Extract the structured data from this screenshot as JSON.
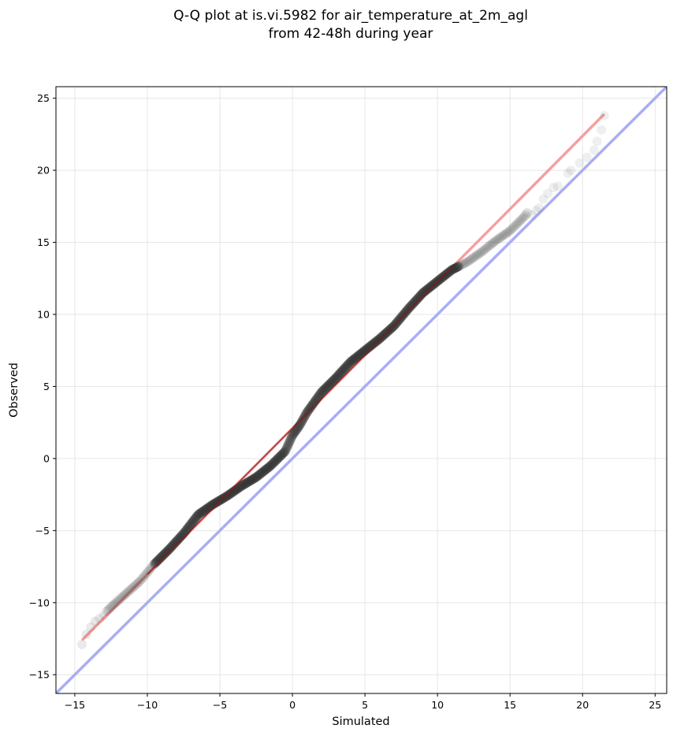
{
  "chart_data": {
    "type": "scatter",
    "title": "Q-Q plot at is.vi.5982 for air_temperature_at_2m_agl",
    "subtitle": "from 42-48h during year",
    "xlabel": "Simulated",
    "ylabel": "Observed",
    "xlim": [
      -16.3,
      25.8
    ],
    "ylim": [
      -16.3,
      25.8
    ],
    "xticks": [
      -15,
      -10,
      -5,
      0,
      5,
      10,
      15,
      20,
      25
    ],
    "yticks": [
      -15,
      -10,
      -5,
      0,
      5,
      10,
      15,
      20,
      25
    ],
    "xtick_labels": [
      "−15",
      "−10",
      "−5",
      "0",
      "5",
      "10",
      "15",
      "20",
      "25"
    ],
    "ytick_labels": [
      "−15",
      "−10",
      "−5",
      "0",
      "5",
      "10",
      "15",
      "20",
      "25"
    ],
    "grid": true,
    "colors": {
      "points": "#333333",
      "fit_line": "#f5a0a0",
      "fit_line_dense": "#8b1a1a",
      "identity_line": "#a8aef5",
      "grid": "#e6e6e6"
    },
    "fit_line": {
      "from": [
        -14.5,
        -12.6
      ],
      "to": [
        21.5,
        23.9
      ]
    },
    "identity_line": {
      "from": [
        -16.3,
        -16.3
      ],
      "to": [
        25.8,
        25.8
      ]
    },
    "quantile_knots": [
      [
        -14.5,
        -12.9
      ],
      [
        -14.2,
        -12.2
      ],
      [
        -13.5,
        -11.3
      ],
      [
        -12.5,
        -10.3
      ],
      [
        -11.5,
        -9.4
      ],
      [
        -10.5,
        -8.5
      ],
      [
        -9.5,
        -7.3
      ],
      [
        -8.5,
        -6.3
      ],
      [
        -7.5,
        -5.2
      ],
      [
        -6.5,
        -3.9
      ],
      [
        -5.5,
        -3.2
      ],
      [
        -4.5,
        -2.6
      ],
      [
        -3.5,
        -1.9
      ],
      [
        -2.5,
        -1.3
      ],
      [
        -1.5,
        -0.5
      ],
      [
        -0.5,
        0.5
      ],
      [
        0.0,
        1.6
      ],
      [
        0.5,
        2.3
      ],
      [
        1.0,
        3.2
      ],
      [
        2.0,
        4.6
      ],
      [
        3.0,
        5.6
      ],
      [
        4.0,
        6.7
      ],
      [
        5.0,
        7.5
      ],
      [
        6.0,
        8.3
      ],
      [
        7.0,
        9.2
      ],
      [
        8.0,
        10.4
      ],
      [
        9.0,
        11.5
      ],
      [
        10.0,
        12.3
      ],
      [
        11.0,
        13.1
      ],
      [
        12.0,
        13.6
      ],
      [
        13.0,
        14.3
      ],
      [
        14.0,
        15.1
      ],
      [
        15.0,
        15.8
      ],
      [
        16.0,
        16.8
      ],
      [
        16.5,
        17.5
      ],
      [
        17.0,
        18.2
      ],
      [
        18.0,
        18.8
      ],
      [
        19.0,
        19.9
      ],
      [
        20.0,
        20.7
      ],
      [
        20.7,
        21.4
      ],
      [
        21.0,
        22.0
      ],
      [
        21.3,
        22.8
      ],
      [
        21.5,
        23.8
      ]
    ]
  }
}
